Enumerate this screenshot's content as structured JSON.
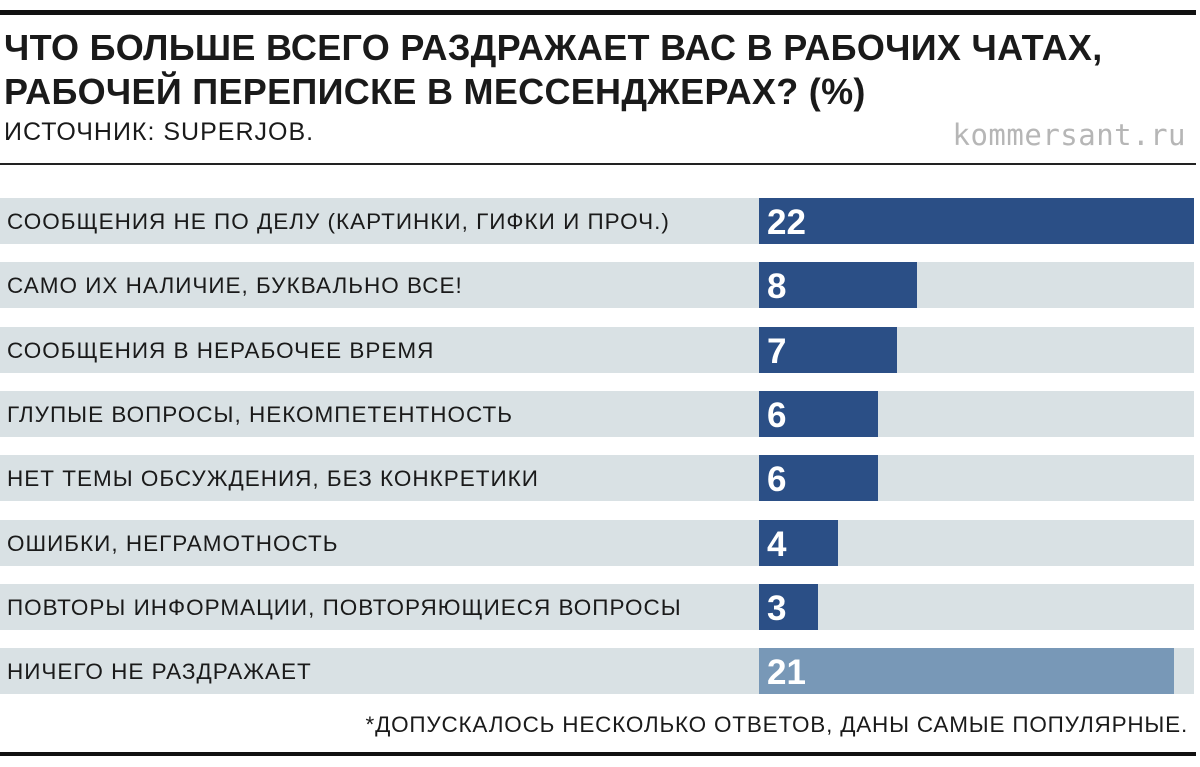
{
  "header": {
    "title_line1": "ЧТО БОЛЬШЕ ВСЕГО РАЗДРАЖАЕТ ВАС В РАБОЧИХ ЧАТАХ,",
    "title_line2": "РАБОЧЕЙ ПЕРЕПИСКЕ В МЕССЕНДЖЕРАХ? (%)",
    "source": "ИСТОЧНИК: SUPERJOB.",
    "watermark": "kommersant.ru"
  },
  "footnote": "*ДОПУСКАЛОСЬ НЕСКОЛЬКО ОТВЕТОВ, ДАНЫ САМЫЕ ПОПУЛЯРНЫЕ.",
  "colors": {
    "bar_primary": "#2b4f86",
    "bar_secondary": "#7898b7",
    "row_background": "#d9e1e4"
  },
  "chart_data": {
    "type": "bar",
    "orientation": "horizontal",
    "title": "ЧТО БОЛЬШЕ ВСЕГО РАЗДРАЖАЕТ ВАС В РАБОЧИХ ЧАТАХ, РАБОЧЕЙ ПЕРЕПИСКЕ В МЕССЕНДЖЕРАХ? (%)",
    "categories": [
      "СООБЩЕНИЯ НЕ ПО ДЕЛУ (КАРТИНКИ, ГИФКИ И ПРОЧ.)",
      "САМО ИХ НАЛИЧИЕ, БУКВАЛЬНО ВСЕ!",
      "СООБЩЕНИЯ В НЕРАБОЧЕЕ ВРЕМЯ",
      "ГЛУПЫЕ ВОПРОСЫ, НЕКОМПЕТЕНТНОСТЬ",
      "НЕТ ТЕМЫ ОБСУЖДЕНИЯ, БЕЗ КОНКРЕТИКИ",
      "ОШИБКИ, НЕГРАМОТНОСТЬ",
      "ПОВТОРЫ ИНФОРМАЦИИ, ПОВТОРЯЮЩИЕСЯ ВОПРОСЫ",
      "НИЧЕГО НЕ РАЗДРАЖАЕТ"
    ],
    "values": [
      22,
      8,
      7,
      6,
      6,
      4,
      3,
      21
    ],
    "highlight": [
      false,
      false,
      false,
      false,
      false,
      false,
      false,
      true
    ],
    "xlim": [
      0,
      22
    ],
    "grid": false,
    "legend": "none"
  }
}
